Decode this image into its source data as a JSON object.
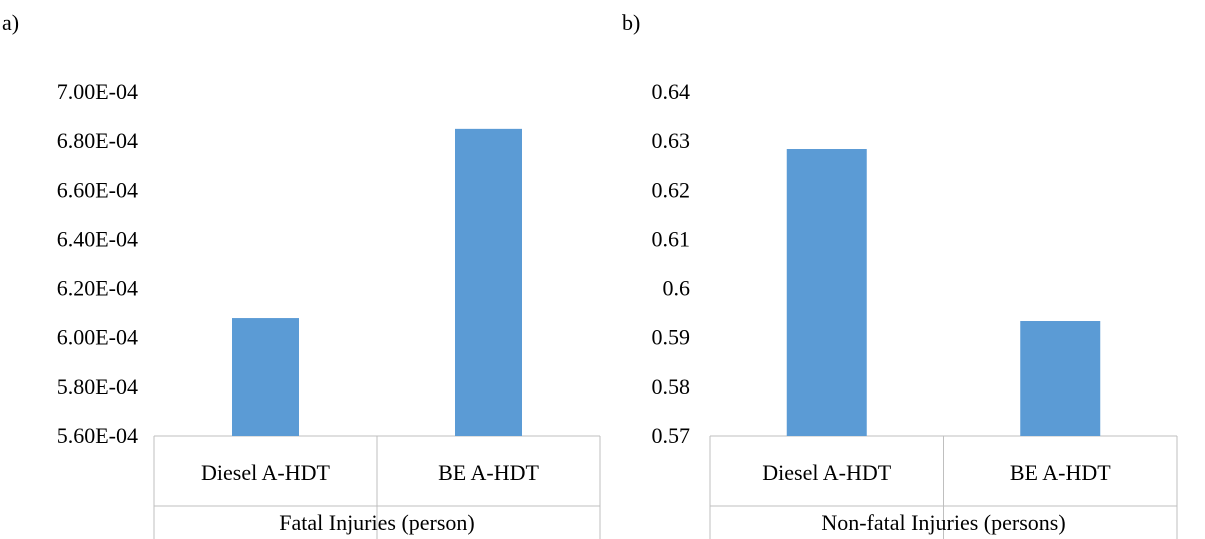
{
  "colors": {
    "bar": "#5b9bd5",
    "axis": "#bfbfbf",
    "text": "#000000"
  },
  "chart_data": [
    {
      "type": "bar",
      "panel_label": "a)",
      "categories": [
        "Diesel A-HDT",
        "BE A-HDT"
      ],
      "values": [
        0.000608,
        0.000685
      ],
      "xlabel": "Fatal Injuries (person)",
      "ylabel": "",
      "ylim": [
        0.00056,
        0.0007
      ],
      "yticks": [
        {
          "value": 0.00056,
          "label": "5.60E-04"
        },
        {
          "value": 0.00058,
          "label": "5.80E-04"
        },
        {
          "value": 0.0006,
          "label": "6.00E-04"
        },
        {
          "value": 0.00062,
          "label": "6.20E-04"
        },
        {
          "value": 0.00064,
          "label": "6.40E-04"
        },
        {
          "value": 0.00066,
          "label": "6.60E-04"
        },
        {
          "value": 0.00068,
          "label": "6.80E-04"
        },
        {
          "value": 0.0007,
          "label": "7.00E-04"
        }
      ],
      "grid": false,
      "legend": "none"
    },
    {
      "type": "bar",
      "panel_label": "b)",
      "categories": [
        "Diesel A-HDT",
        "BE A-HDT"
      ],
      "values": [
        0.6284,
        0.5934
      ],
      "xlabel": "Non-fatal Injuries (persons)",
      "ylabel": "",
      "ylim": [
        0.57,
        0.64
      ],
      "yticks": [
        {
          "value": 0.57,
          "label": "0.57"
        },
        {
          "value": 0.58,
          "label": "0.58"
        },
        {
          "value": 0.59,
          "label": "0.59"
        },
        {
          "value": 0.6,
          "label": "0.6"
        },
        {
          "value": 0.61,
          "label": "0.61"
        },
        {
          "value": 0.62,
          "label": "0.62"
        },
        {
          "value": 0.63,
          "label": "0.63"
        },
        {
          "value": 0.64,
          "label": "0.64"
        }
      ],
      "grid": false,
      "legend": "none"
    }
  ]
}
